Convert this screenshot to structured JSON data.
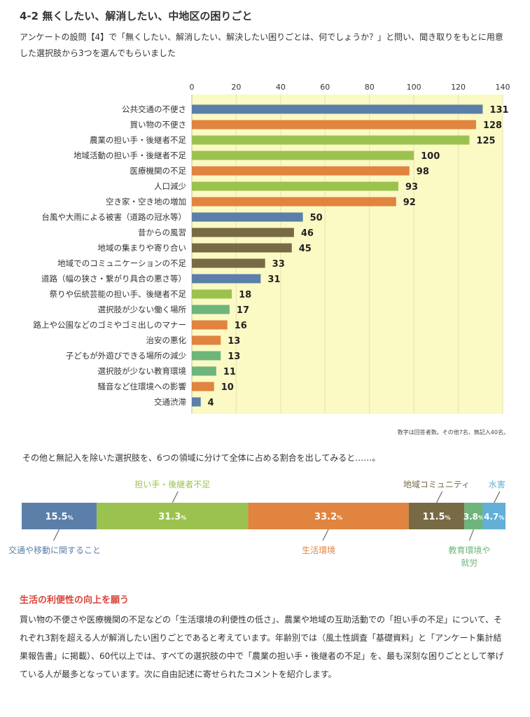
{
  "header": {
    "title": "4-2 無くしたい、解消したい、中地区の困りごと",
    "intro": "アンケートの設問【4】で「無くしたい、解消したい、解決したい困りごとは、何でしょうか？」と問い、聞き取りをもとに用意した選択肢から3つを選んでもらいました"
  },
  "colors": {
    "blue": "#5b7fa8",
    "orange": "#e0843f",
    "green": "#9bc24e",
    "brown": "#776a45",
    "mint": "#6db57a",
    "sky": "#63afd8",
    "plot_bg": "#fbf9c4",
    "accent_red": "#d9453b"
  },
  "chart_data": [
    {
      "type": "bar",
      "orientation": "horizontal",
      "xlim": [
        0,
        140
      ],
      "ticks": [
        "0",
        "20",
        "40",
        "60",
        "80",
        "100",
        "120",
        "140"
      ],
      "grid": true,
      "categories": [
        "公共交通の不便さ",
        "買い物の不便さ",
        "農業の担い手・後継者不足",
        "地域活動の担い手・後継者不足",
        "医療機関の不足",
        "人口減少",
        "空き家・空き地の増加",
        "台風や大雨による被害（道路の冠水等）",
        "昔からの風習",
        "地域の集まりや寄り合い",
        "地域でのコミュニケーションの不足",
        "道路（幅の狭さ・繋がり具合の悪さ等）",
        "祭りや伝統芸能の担い手、後継者不足",
        "選択肢が少ない働く場所",
        "路上や公園などのゴミやゴミ出しのマナー",
        "治安の悪化",
        "子どもが外遊びできる場所の減少",
        "選択肢が少ない教育環境",
        "騒音など住環境への影響",
        "交通渋滞"
      ],
      "values": [
        131,
        128,
        125,
        100,
        98,
        93,
        92,
        50,
        46,
        45,
        33,
        31,
        18,
        17,
        16,
        13,
        13,
        11,
        10,
        4
      ],
      "bar_colors": [
        "blue",
        "orange",
        "green",
        "green",
        "orange",
        "green",
        "orange",
        "blue",
        "brown",
        "brown",
        "brown",
        "blue",
        "green",
        "mint",
        "orange",
        "orange",
        "mint",
        "mint",
        "orange",
        "blue"
      ],
      "note": "数字は回答者数。その他7名、無記入40名。"
    },
    {
      "type": "bar",
      "orientation": "stacked-100",
      "segments": [
        {
          "name": "交通や移動に関すること",
          "value": 15.5,
          "display": "15.5",
          "color": "blue",
          "label_pos": "below"
        },
        {
          "name": "担い手・後継者不足",
          "value": 31.3,
          "display": "31.3",
          "color": "green",
          "label_pos": "above"
        },
        {
          "name": "生活環境",
          "value": 33.2,
          "display": "33.2",
          "color": "orange",
          "label_pos": "below"
        },
        {
          "name": "地域コミュニティ",
          "value": 11.5,
          "display": "11.5",
          "color": "brown",
          "label_pos": "above"
        },
        {
          "name": "教育環境や就労",
          "value": 3.8,
          "display": "3.8",
          "color": "mint",
          "label_pos": "below"
        },
        {
          "name": "水害",
          "value": 4.7,
          "display": "4.7",
          "color": "sky",
          "label_pos": "above"
        }
      ],
      "unit": "%",
      "lead": "その他と無記入を除いた選択肢を、6つの領域に分けて全体に占める割合を出してみると……。"
    }
  ],
  "section": {
    "title": "生活の利便性の向上を願う",
    "body": "買い物の不便さや医療機関の不足などの「生活環境の利便性の低さ」、農業や地域の互助活動での「担い手の不足」について、それぞれ3割を超える人が解消したい困りごとであると考えています。年齢別では（風土性調査「基礎資料」と「アンケート集計結果報告書」に掲載）、60代以上では、すべての選択肢の中で「農業の担い手・後継者の不足」を、最も深刻な困りごととして挙げている人が最多となっています。次に自由記述に寄せられたコメントを紹介します。"
  }
}
